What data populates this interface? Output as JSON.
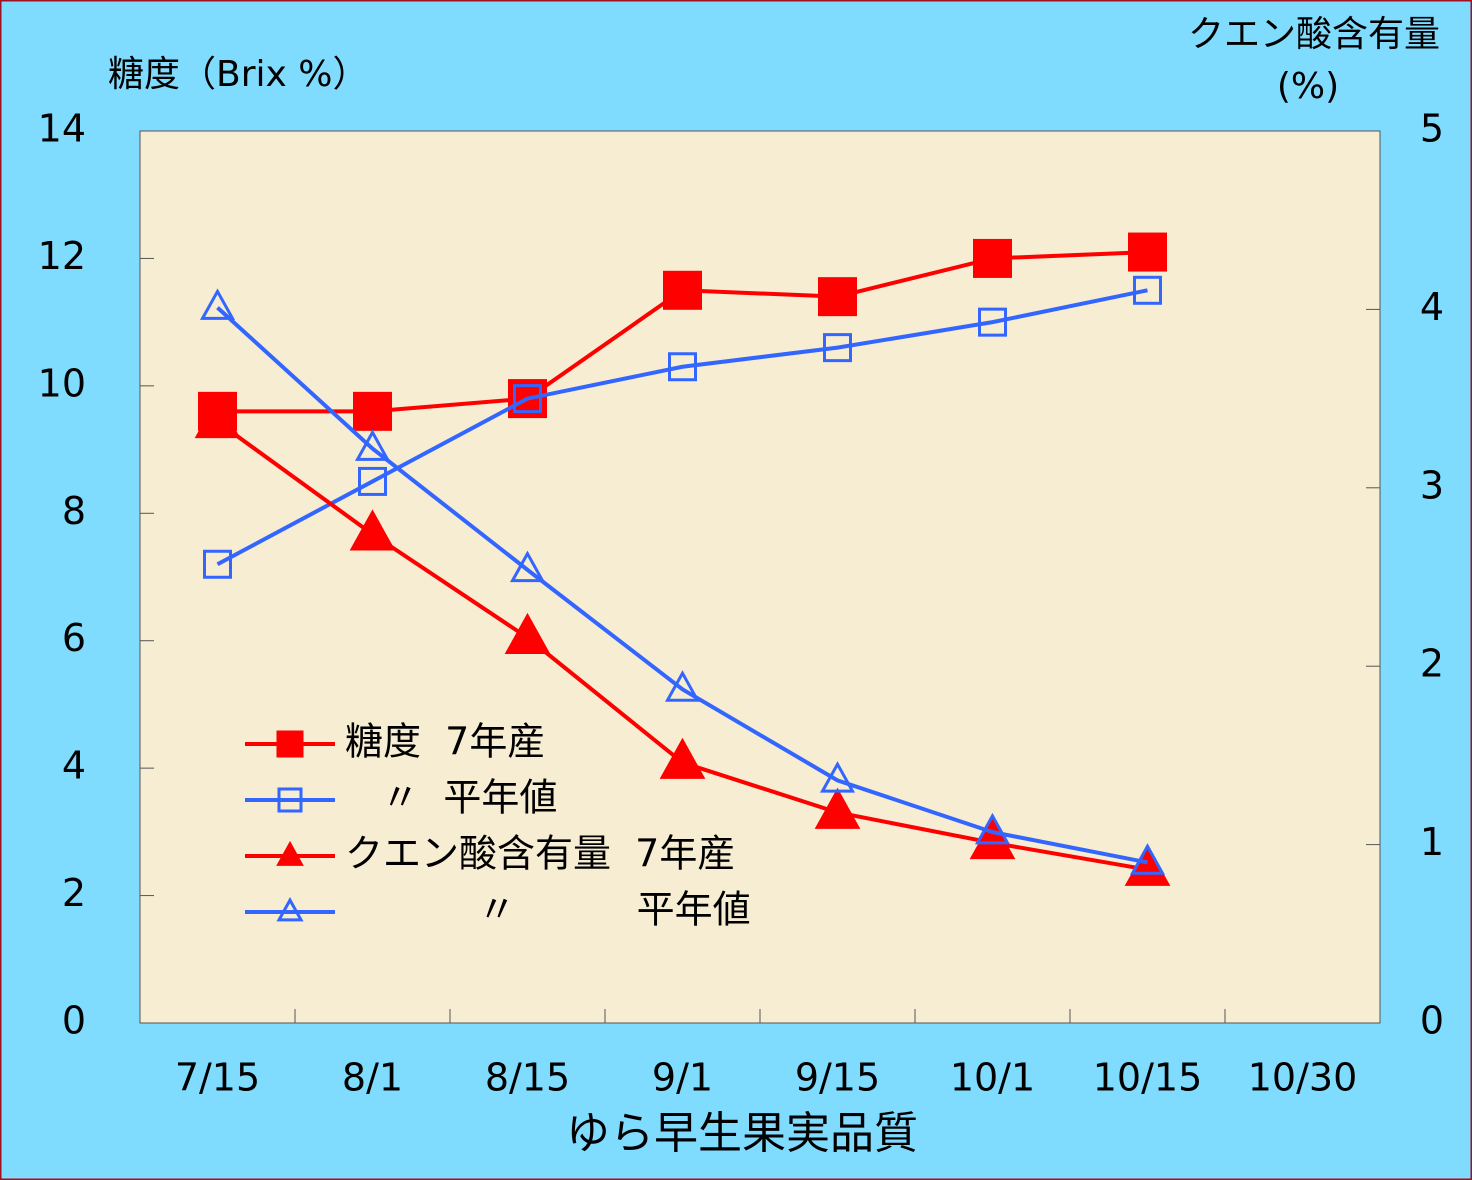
{
  "chart_data": {
    "type": "line",
    "title": "ゆら早生果実品質",
    "ylabel": "糖度（Brix %）",
    "y2label": [
      "クエン酸含有量",
      "(%)"
    ],
    "categories": [
      "7/15",
      "8/1",
      "8/15",
      "9/1",
      "9/15",
      "10/1",
      "10/15",
      "10/30"
    ],
    "ylim": [
      0,
      14
    ],
    "yticks": [
      0,
      2,
      4,
      6,
      8,
      10,
      12,
      14
    ],
    "y2lim": [
      0,
      5
    ],
    "y2ticks": [
      0,
      1,
      2,
      3,
      4,
      5
    ],
    "series": [
      {
        "name": "糖度  7年産",
        "color": "#ff0000",
        "marker": "square",
        "filled": true,
        "values": [
          9.6,
          9.6,
          9.8,
          11.5,
          11.4,
          12.0,
          12.1,
          null
        ]
      },
      {
        "name": "   〃  平年値",
        "color": "#3366ff",
        "marker": "square",
        "filled": false,
        "values": [
          7.2,
          8.5,
          9.8,
          10.3,
          10.6,
          11.0,
          11.5,
          null
        ]
      },
      {
        "name": "クエン酸含有量  7年産",
        "color": "#ff0000",
        "marker": "triangle",
        "filled": true,
        "axis": "y2",
        "values": [
          3.37,
          2.74,
          2.16,
          1.46,
          1.18,
          1.01,
          0.86,
          null
        ]
      },
      {
        "name": "           〃          平年値",
        "color": "#3366ff",
        "marker": "triangle",
        "filled": false,
        "axis": "y2",
        "values": [
          4.01,
          3.22,
          2.54,
          1.87,
          1.36,
          1.07,
          0.9,
          null
        ]
      }
    ]
  }
}
